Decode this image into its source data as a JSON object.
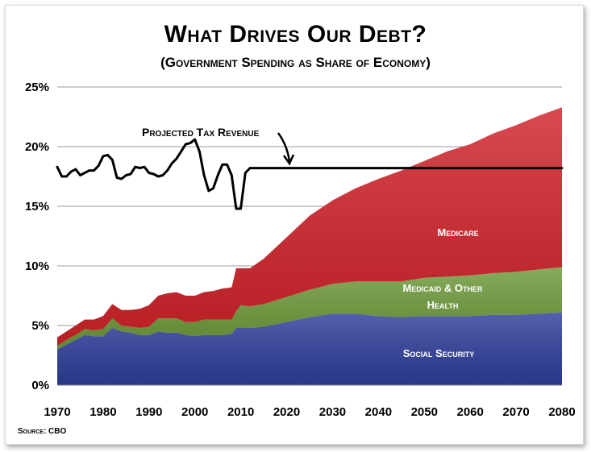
{
  "chart_data": {
    "type": "area",
    "title": "What Drives Our Debt?",
    "subtitle": "(Government Spending as Share of Economy)",
    "source": "Source: CBO",
    "ylim": [
      0,
      25
    ],
    "xlim": [
      1970,
      2080
    ],
    "x_ticks": [
      "1970",
      "1980",
      "1990",
      "2000",
      "2010",
      "2020",
      "2030",
      "2040",
      "2050",
      "2060",
      "2070",
      "2080"
    ],
    "y_ticks": [
      "0%",
      "5%",
      "10%",
      "15%",
      "20%",
      "25%"
    ],
    "grid": true,
    "colors": {
      "social_security": "#2f3f9c",
      "medicaid": "#6e9a3a",
      "medicare": "#d1232a",
      "revenue": "#000000"
    },
    "x": [
      1970,
      1972,
      1974,
      1976,
      1978,
      1980,
      1982,
      1984,
      1986,
      1988,
      1990,
      1992,
      1994,
      1996,
      1998,
      2000,
      2002,
      2004,
      2006,
      2008,
      2009,
      2010,
      2012,
      2015,
      2020,
      2025,
      2030,
      2035,
      2040,
      2045,
      2050,
      2055,
      2060,
      2065,
      2070,
      2075,
      2080
    ],
    "series": [
      {
        "name": "Social Security",
        "values": [
          3.0,
          3.4,
          3.8,
          4.2,
          4.1,
          4.1,
          4.8,
          4.5,
          4.4,
          4.2,
          4.2,
          4.5,
          4.4,
          4.4,
          4.2,
          4.1,
          4.2,
          4.2,
          4.2,
          4.3,
          4.8,
          4.8,
          4.8,
          4.9,
          5.3,
          5.7,
          6.0,
          6.0,
          5.8,
          5.7,
          5.8,
          5.8,
          5.8,
          5.9,
          5.9,
          6.0,
          6.1
        ]
      },
      {
        "name": "Medicaid & Other Health",
        "values": [
          0.3,
          0.4,
          0.4,
          0.5,
          0.5,
          0.6,
          0.8,
          0.5,
          0.5,
          0.6,
          0.7,
          1.1,
          1.2,
          1.2,
          1.1,
          1.2,
          1.3,
          1.3,
          1.3,
          1.2,
          1.4,
          1.9,
          1.8,
          1.9,
          2.1,
          2.3,
          2.5,
          2.7,
          2.9,
          3.0,
          3.2,
          3.3,
          3.4,
          3.5,
          3.6,
          3.7,
          3.8
        ]
      },
      {
        "name": "Medicare",
        "values": [
          0.7,
          0.7,
          0.8,
          0.8,
          0.9,
          1.1,
          1.2,
          1.3,
          1.4,
          1.6,
          1.8,
          1.9,
          2.1,
          2.2,
          2.2,
          2.2,
          2.3,
          2.4,
          2.6,
          2.7,
          3.6,
          3.1,
          3.2,
          3.8,
          5.0,
          6.2,
          7.0,
          7.8,
          8.6,
          9.3,
          9.8,
          10.5,
          11.0,
          11.7,
          12.3,
          12.9,
          13.4
        ]
      }
    ],
    "revenue": {
      "name": "Projected Tax Revenue",
      "x": [
        1970,
        1971,
        1972,
        1973,
        1974,
        1975,
        1976,
        1977,
        1978,
        1979,
        1980,
        1981,
        1982,
        1983,
        1984,
        1985,
        1986,
        1987,
        1988,
        1989,
        1990,
        1991,
        1992,
        1993,
        1994,
        1995,
        1996,
        1997,
        1998,
        1999,
        2000,
        2001,
        2002,
        2003,
        2004,
        2005,
        2006,
        2007,
        2008,
        2009,
        2010,
        2011,
        2012,
        2015,
        2020,
        2030,
        2040,
        2050,
        2060,
        2070,
        2080
      ],
      "values": [
        18.3,
        17.5,
        17.5,
        17.9,
        18.1,
        17.6,
        17.8,
        18.0,
        18.0,
        18.4,
        19.2,
        19.3,
        18.9,
        17.4,
        17.3,
        17.6,
        17.7,
        18.3,
        18.2,
        18.3,
        17.8,
        17.7,
        17.5,
        17.6,
        18.0,
        18.6,
        19.0,
        19.6,
        20.2,
        20.3,
        20.6,
        19.6,
        17.6,
        16.3,
        16.5,
        17.6,
        18.5,
        18.5,
        17.6,
        14.8,
        14.8,
        17.8,
        18.2,
        18.2,
        18.2,
        18.2,
        18.2,
        18.2,
        18.2,
        18.2,
        18.2
      ]
    },
    "annotations": {
      "medicare": "Medicare",
      "medicaid_line1": "Medicaid & Other",
      "medicaid_line2": "Health",
      "social_security": "Social Security",
      "revenue": "Projected Tax Revenue"
    }
  }
}
